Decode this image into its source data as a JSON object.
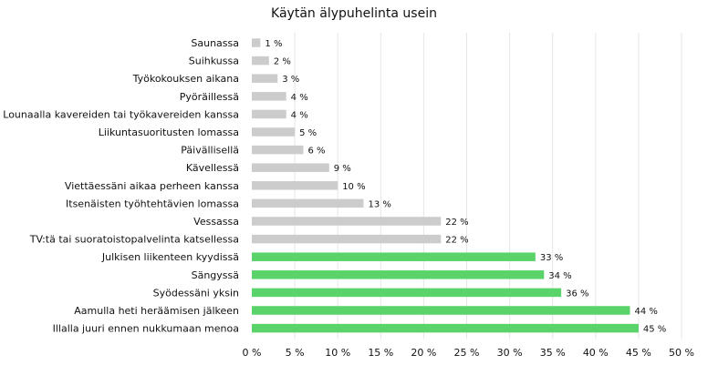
{
  "chart_data": {
    "type": "bar",
    "orientation": "horizontal",
    "title": "Käytän älypuhelinta usein",
    "xlim": [
      0,
      50
    ],
    "x_ticks": [
      0,
      5,
      10,
      15,
      20,
      25,
      30,
      35,
      40,
      45,
      50
    ],
    "x_tick_labels": [
      "0 %",
      "5 %",
      "10 %",
      "15 %",
      "20 %",
      "25 %",
      "30 %",
      "35 %",
      "40 %",
      "45 %",
      "50 %"
    ],
    "grid": "vertical",
    "categories": [
      "Saunassa",
      "Suihkussa",
      "Työkokouksen aikana",
      "Pyöräillessä",
      "Lounaalla kavereiden tai työkavereiden kanssa",
      "Liikuntasuoritusten lomassa",
      "Päivällisellä",
      "Kävellessä",
      "Viettäessäni aikaa perheen kanssa",
      "Itsenäisten työhtehtävien lomassa",
      "Vessassa",
      "TV:tä tai suoratoistopalvelinta katsellessa",
      "Julkisen liikenteen kyydissä",
      "Sängyssä",
      "Syödessäni yksin",
      "Aamulla heti heräämisen jälkeen",
      "Illalla juuri ennen nukkumaan menoa"
    ],
    "values": [
      1,
      2,
      3,
      4,
      4,
      5,
      6,
      9,
      10,
      13,
      22,
      22,
      33,
      34,
      36,
      44,
      45
    ],
    "value_labels": [
      "1 %",
      "2 %",
      "3 %",
      "4 %",
      "4 %",
      "5 %",
      "6 %",
      "9 %",
      "10 %",
      "13 %",
      "22 %",
      "22 %",
      "33 %",
      "34 %",
      "36 %",
      "44 %",
      "45 %"
    ],
    "highlight_from_index": 12,
    "colors": {
      "base": "#cccccc",
      "highlight": "#5bd36b",
      "grid": "#e6e6e6",
      "text": "#111111"
    }
  }
}
